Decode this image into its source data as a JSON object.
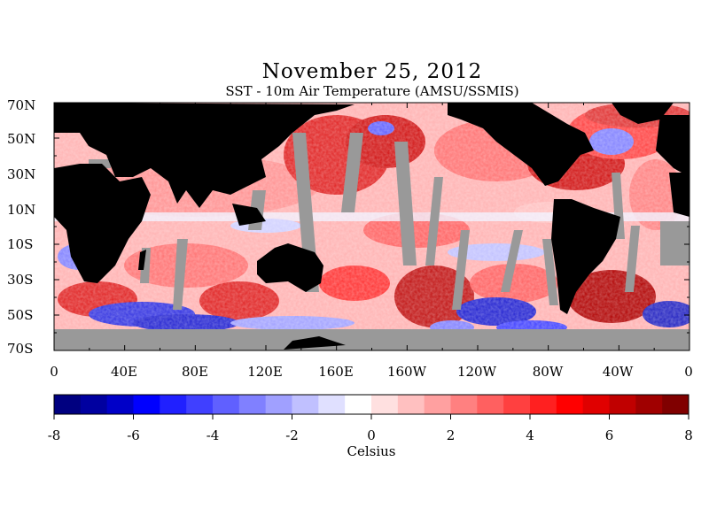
{
  "title": "November 25, 2012",
  "subtitle": "SST - 10m Air Temperature (AMSU/SSMIS)",
  "lat_labels": [
    "70N",
    "50N",
    "30N",
    "10N",
    "10S",
    "30S",
    "50S",
    "70S"
  ],
  "lon_labels": [
    "0",
    "40E",
    "80E",
    "120E",
    "160E",
    "160W",
    "120W",
    "80W",
    "40W",
    "0"
  ],
  "colorbar": {
    "min": -8,
    "max": 8,
    "tick_labels": [
      "-8",
      "-6",
      "-4",
      "-2",
      "0",
      "2",
      "4",
      "6",
      "8"
    ],
    "units": "Celsius",
    "colors": [
      "#000080",
      "#0000a0",
      "#0000c8",
      "#0000ff",
      "#2020ff",
      "#4040ff",
      "#6060ff",
      "#8080ff",
      "#a0a0ff",
      "#c0c0ff",
      "#e0e0ff",
      "#ffffff",
      "#ffe0e0",
      "#ffc0c0",
      "#ffa0a0",
      "#ff8080",
      "#ff6060",
      "#ff4040",
      "#ff2020",
      "#ff0000",
      "#e00000",
      "#c00000",
      "#a00000",
      "#800000"
    ]
  },
  "legend_colors": {
    "land": "#000000",
    "no_data": "#999999"
  }
}
